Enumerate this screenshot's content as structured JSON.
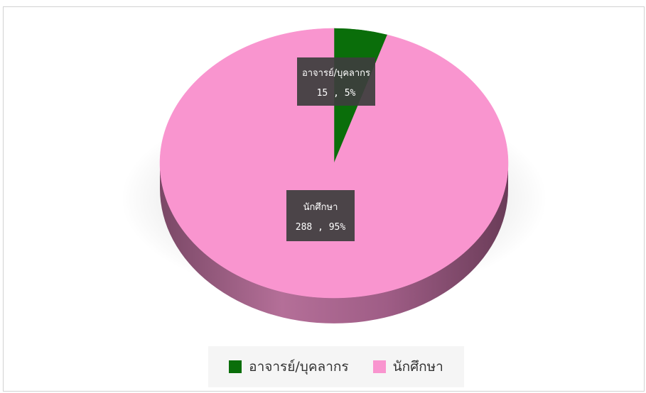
{
  "chart_data": {
    "type": "pie",
    "title": "",
    "slices": [
      {
        "name": "อาจารย์/บุคลากร",
        "value": 15,
        "percent": 5,
        "color": "#0a6e0a",
        "label_line1": "อาจารย์/บุคลากร",
        "label_line2": "15 , 5%"
      },
      {
        "name": "นักศึกษา",
        "value": 288,
        "percent": 95,
        "color": "#f995cf",
        "label_line1": "นักศึกษา",
        "label_line2": "288 , 95%"
      }
    ],
    "legend_position": "bottom"
  },
  "legend": {
    "items": [
      {
        "label": "อาจารย์/บุคลากร",
        "color": "#0a6e0a"
      },
      {
        "label": "นักศึกษา",
        "color": "#f995cf"
      }
    ]
  }
}
